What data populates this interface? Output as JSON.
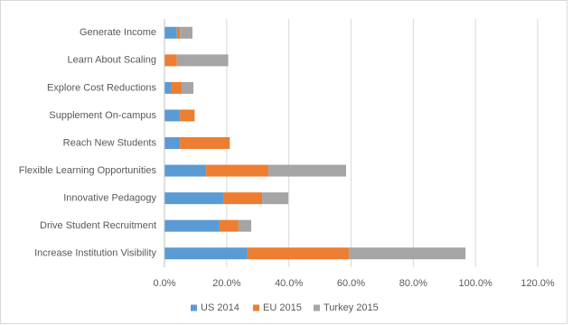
{
  "chart_data": {
    "type": "stacked-bar-horizontal",
    "categories": [
      "Generate Income",
      "Learn About Scaling",
      "Explore Cost Reductions",
      "Supplement On-campus",
      "Reach New Students",
      "Flexible Learning Opportunities",
      "Innovative Pedagogy",
      "Drive Student Recruitment",
      "Increase Institution Visibility"
    ],
    "series": [
      {
        "name": "US 2014",
        "color": "#5b9bd5",
        "values": [
          4,
          0,
          2.3,
          5,
          5,
          13.4,
          18.9,
          17.7,
          26.7
        ]
      },
      {
        "name": "EU 2015",
        "color": "#ed7d31",
        "values": [
          1,
          4,
          3.2,
          4.7,
          16,
          20,
          12.5,
          6.1,
          32.6
        ]
      },
      {
        "name": "Turkey 2015",
        "color": "#a5a5a5",
        "values": [
          4,
          16.5,
          3.8,
          0,
          0,
          25,
          8.4,
          4.1,
          37.5
        ]
      }
    ],
    "xlim": [
      0,
      120
    ],
    "xticks": [
      {
        "value": 0,
        "label": "0.0%"
      },
      {
        "value": 20,
        "label": "20.0%"
      },
      {
        "value": 40,
        "label": "40.0%"
      },
      {
        "value": 60,
        "label": "60.0%"
      },
      {
        "value": 80,
        "label": "80.0%"
      },
      {
        "value": 100,
        "label": "100.0%"
      },
      {
        "value": 120,
        "label": "120.0%"
      }
    ],
    "grid": true,
    "legend": "bottom"
  }
}
